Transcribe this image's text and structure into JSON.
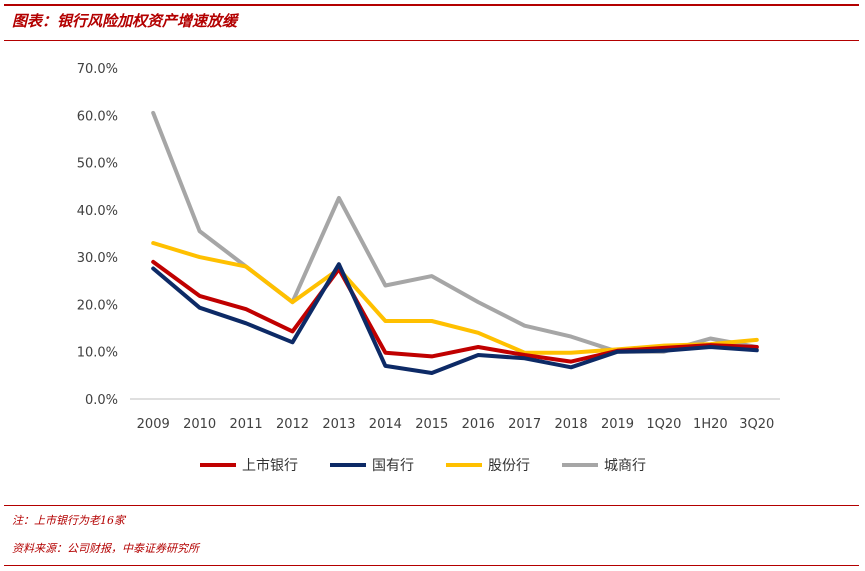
{
  "header": {
    "title": "图表：银行风险加权资产增速放缓"
  },
  "footer": {
    "note": "注：上市银行为老16家",
    "source": "资料来源：公司财报，中泰证券研究所"
  },
  "chart_data": {
    "type": "line",
    "categories": [
      "2009",
      "2010",
      "2011",
      "2012",
      "2013",
      "2014",
      "2015",
      "2016",
      "2017",
      "2018",
      "2019",
      "1Q20",
      "1H20",
      "3Q20"
    ],
    "ylim": [
      0,
      70
    ],
    "yticks": [
      "0.0%",
      "10.0%",
      "20.0%",
      "30.0%",
      "40.0%",
      "50.0%",
      "60.0%",
      "70.0%"
    ],
    "grid": false,
    "legend_position": "bottom",
    "series": [
      {
        "name": "上市银行",
        "color": "#c00000",
        "values": [
          29.0,
          21.8,
          19.0,
          14.3,
          27.5,
          9.8,
          9.0,
          11.0,
          9.3,
          7.9,
          10.2,
          10.8,
          11.4,
          11.0
        ]
      },
      {
        "name": "国有行",
        "color": "#0d2a66",
        "values": [
          27.6,
          19.3,
          16.0,
          12.0,
          28.5,
          7.0,
          5.5,
          9.3,
          8.6,
          6.7,
          10.0,
          10.2,
          11.0,
          10.3
        ]
      },
      {
        "name": "股份行",
        "color": "#ffc000",
        "values": [
          33.0,
          30.0,
          28.0,
          20.5,
          27.5,
          16.5,
          16.5,
          14.0,
          9.8,
          9.8,
          10.5,
          11.3,
          11.6,
          12.5
        ]
      },
      {
        "name": "城商行",
        "color": "#a6a6a6",
        "values": [
          60.5,
          35.5,
          28.0,
          20.5,
          42.5,
          24.0,
          26.0,
          20.5,
          15.5,
          13.2,
          10.0,
          10.0,
          12.8,
          11.0
        ]
      }
    ]
  }
}
